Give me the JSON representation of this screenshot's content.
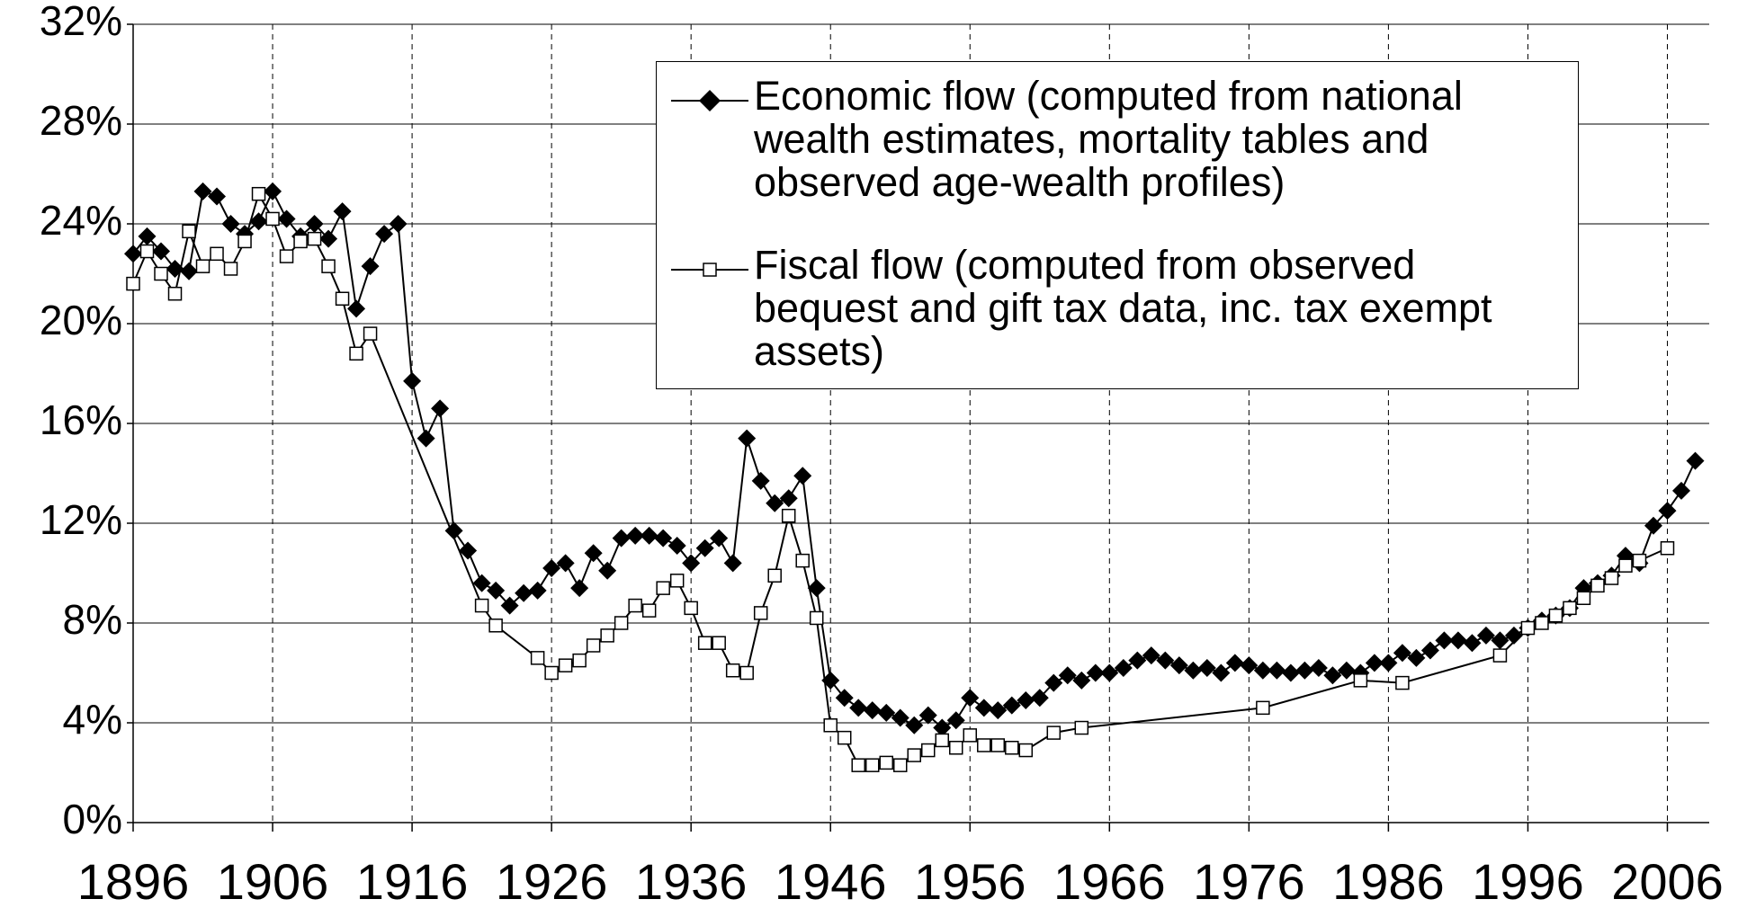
{
  "chart_data": {
    "type": "line",
    "series": [
      {
        "name": "Economic flow (computed from national wealth estimates, mortality tables and observed age-wealth profiles)",
        "color": "#000000",
        "marker": "diamond",
        "x": [
          1896,
          1897,
          1898,
          1899,
          1900,
          1901,
          1902,
          1903,
          1904,
          1905,
          1906,
          1907,
          1908,
          1909,
          1910,
          1911,
          1912,
          1913,
          1914,
          1915,
          1916,
          1917,
          1918,
          1919,
          1920,
          1921,
          1922,
          1923,
          1924,
          1925,
          1926,
          1927,
          1928,
          1929,
          1930,
          1931,
          1932,
          1933,
          1934,
          1935,
          1936,
          1937,
          1938,
          1939,
          1940,
          1941,
          1942,
          1943,
          1944,
          1945,
          1946,
          1947,
          1948,
          1949,
          1950,
          1951,
          1952,
          1953,
          1954,
          1955,
          1956,
          1957,
          1958,
          1959,
          1960,
          1961,
          1962,
          1963,
          1964,
          1965,
          1966,
          1967,
          1968,
          1969,
          1970,
          1971,
          1972,
          1973,
          1974,
          1975,
          1976,
          1977,
          1978,
          1979,
          1980,
          1981,
          1982,
          1983,
          1984,
          1985,
          1986,
          1987,
          1988,
          1989,
          1990,
          1991,
          1992,
          1993,
          1994,
          1995,
          1996,
          1997,
          1998,
          1999,
          2000,
          2001,
          2002,
          2003,
          2004,
          2005,
          2006,
          2007,
          2008
        ],
        "values": [
          22.8,
          23.5,
          22.9,
          22.2,
          22.1,
          25.3,
          25.1,
          24.0,
          23.6,
          24.1,
          25.3,
          24.2,
          23.5,
          24.0,
          23.4,
          24.5,
          20.6,
          22.3,
          23.6,
          24.0,
          17.7,
          15.4,
          16.6,
          11.7,
          10.9,
          9.6,
          9.3,
          8.7,
          9.2,
          9.3,
          10.2,
          10.4,
          9.4,
          10.8,
          10.1,
          11.4,
          11.5,
          11.5,
          11.4,
          11.1,
          10.4,
          11.0,
          11.4,
          10.4,
          15.4,
          13.7,
          12.8,
          13.0,
          13.9,
          9.4,
          5.7,
          5.0,
          4.6,
          4.5,
          4.4,
          4.2,
          3.9,
          4.3,
          3.8,
          4.1,
          5.0,
          4.6,
          4.5,
          4.7,
          4.9,
          5.0,
          5.6,
          5.9,
          5.7,
          6.0,
          6.0,
          6.2,
          6.5,
          6.7,
          6.5,
          6.3,
          6.1,
          6.2,
          6.0,
          6.4,
          6.3,
          6.1,
          6.1,
          6.0,
          6.1,
          6.2,
          5.9,
          6.1,
          6.0,
          6.4,
          6.4,
          6.8,
          6.6,
          6.9,
          7.3,
          7.3,
          7.2,
          7.5,
          7.3,
          7.5,
          7.8,
          8.1,
          8.3,
          8.6,
          9.4,
          9.6,
          9.9,
          10.7,
          10.4,
          11.9,
          12.5,
          13.3,
          14.5
        ]
      },
      {
        "name": "Fiscal flow (computed from observed bequest and gift tax data, inc. tax exempt assets)",
        "color": "#000000",
        "marker": "square",
        "x": [
          1896,
          1897,
          1898,
          1899,
          1900,
          1901,
          1902,
          1903,
          1904,
          1905,
          1906,
          1907,
          1908,
          1909,
          1910,
          1911,
          1912,
          1913,
          1921,
          1922,
          1925,
          1926,
          1927,
          1928,
          1929,
          1930,
          1931,
          1932,
          1933,
          1934,
          1935,
          1936,
          1937,
          1938,
          1939,
          1940,
          1941,
          1942,
          1943,
          1944,
          1945,
          1946,
          1947,
          1948,
          1949,
          1950,
          1951,
          1952,
          1953,
          1954,
          1955,
          1956,
          1957,
          1958,
          1959,
          1960,
          1962,
          1964,
          1977,
          1984,
          1987,
          1994,
          1996,
          1997,
          1998,
          1999,
          2000,
          2001,
          2002,
          2003,
          2004,
          2006
        ],
        "values": [
          21.6,
          22.9,
          22.0,
          21.2,
          23.7,
          22.3,
          22.8,
          22.2,
          23.3,
          25.2,
          24.2,
          22.7,
          23.3,
          23.4,
          22.3,
          21.0,
          18.8,
          19.6,
          8.7,
          7.9,
          6.6,
          6.0,
          6.3,
          6.5,
          7.1,
          7.5,
          8.0,
          8.7,
          8.5,
          9.4,
          9.7,
          8.6,
          7.2,
          7.2,
          6.1,
          6.0,
          8.4,
          9.9,
          12.3,
          10.5,
          8.2,
          3.9,
          3.4,
          2.3,
          2.3,
          2.4,
          2.3,
          2.7,
          2.9,
          3.3,
          3.0,
          3.5,
          3.1,
          3.1,
          3.0,
          2.9,
          3.6,
          3.8,
          4.6,
          5.7,
          5.6,
          6.7,
          7.8,
          8.0,
          8.3,
          8.6,
          9.0,
          9.5,
          9.8,
          10.3,
          10.5,
          11.0
        ]
      }
    ],
    "xlim": [
      1896,
      2009
    ],
    "xticks": [
      1896,
      1906,
      1916,
      1926,
      1936,
      1946,
      1956,
      1966,
      1976,
      1986,
      1996,
      2006
    ],
    "ylim": [
      0,
      32
    ],
    "yticks": [
      {
        "value": 0,
        "label": "0%"
      },
      {
        "value": 4,
        "label": "4%"
      },
      {
        "value": 8,
        "label": "8%"
      },
      {
        "value": 12,
        "label": "12%"
      },
      {
        "value": 16,
        "label": "16%"
      },
      {
        "value": 20,
        "label": "20%"
      },
      {
        "value": 24,
        "label": "24%"
      },
      {
        "value": 28,
        "label": "28%"
      },
      {
        "value": 32,
        "label": "32%"
      }
    ],
    "grid": true,
    "legend": "upper right"
  }
}
